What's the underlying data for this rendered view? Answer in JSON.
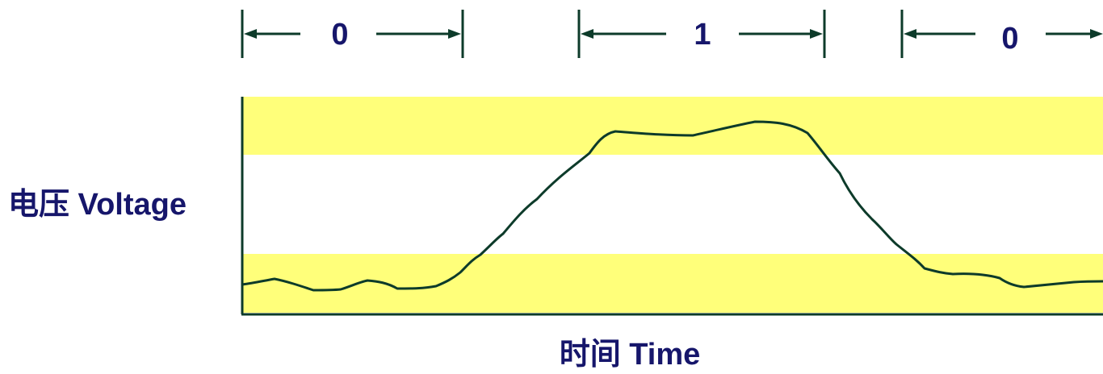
{
  "bit_labels": [
    "0",
    "1",
    "0"
  ],
  "y_axis_label": "电压 Voltage",
  "x_axis_label": "时间 Time",
  "colors": {
    "band": "#ffff7a",
    "signal": "#0d3b2a",
    "axis": "#0d3b2a",
    "label": "#16166b"
  }
}
